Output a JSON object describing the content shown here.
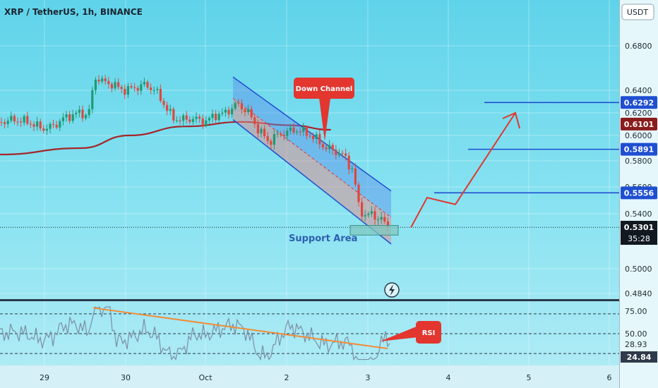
{
  "header": {
    "title": "XRP / TetherUS, 1h, BINANCE",
    "currency_label": "USDT"
  },
  "price_axis": {
    "ticks": [
      "0.6800",
      "0.6400",
      "0.6200",
      "0.6000",
      "0.5800",
      "0.5600",
      "0.5400",
      "0.5000",
      "0.4840"
    ]
  },
  "price_badges": [
    {
      "label": "0.6292",
      "color": "#1f4fd1"
    },
    {
      "label": "0.6101",
      "color": "#8a1c1c"
    },
    {
      "label": "0.5891",
      "color": "#1f4fd1"
    },
    {
      "label": "0.5556",
      "color": "#1f4fd1"
    }
  ],
  "current_price": {
    "label": "0.5301",
    "countdown": "35:28"
  },
  "time_axis": {
    "ticks": [
      "29",
      "30",
      "Oct",
      "2",
      "3",
      "4",
      "5",
      "6"
    ]
  },
  "rsi_axis": {
    "ticks": [
      "75.00",
      "50.00",
      "28.93",
      "24.84"
    ]
  },
  "annotations": {
    "down_channel": "Down Channel",
    "support_area": "Support Area",
    "rsi": "RSI"
  },
  "colors": {
    "channel_line": "#1f4fd1",
    "moving_average": "#a3262a",
    "forecast_arrow": "#e2362f",
    "bull_candle": "#1e9b73",
    "bear_candle": "#e0473f",
    "rsi_line": "#7b8fa3",
    "rsi_trendline": "#f08c3a"
  },
  "icons": {
    "lightning": "lightning-bolt-icon"
  },
  "chart_data": {
    "type": "candlestick",
    "title": "XRP / TetherUS, 1h, BINANCE",
    "x_ticks": [
      "29",
      "30",
      "Oct",
      "2",
      "3",
      "4",
      "5",
      "6"
    ],
    "ylim": [
      0.478,
      0.7
    ],
    "levels": [
      0.6292,
      0.6101,
      0.5891,
      0.5556,
      0.5301
    ],
    "moving_average": [
      {
        "x": 0,
        "y": 0.585
      },
      {
        "x": 1,
        "y": 0.59
      },
      {
        "x": 1.6,
        "y": 0.6
      },
      {
        "x": 2.3,
        "y": 0.608
      },
      {
        "x": 3,
        "y": 0.612
      },
      {
        "x": 3.6,
        "y": 0.609
      },
      {
        "x": 4.1,
        "y": 0.605
      }
    ],
    "down_channel": {
      "upper": [
        {
          "x": 2.35,
          "y": 0.652
        },
        {
          "x": 4.1,
          "y": 0.557
        }
      ],
      "lower": [
        {
          "x": 2.35,
          "y": 0.614
        },
        {
          "x": 4.1,
          "y": 0.518
        }
      ]
    },
    "support_area": [
      0.5245,
      0.5315
    ],
    "forecast_path": [
      {
        "x": 4.15,
        "y": 0.53
      },
      {
        "x": 4.45,
        "y": 0.552
      },
      {
        "x": 4.75,
        "y": 0.547
      },
      {
        "x": 5.35,
        "y": 0.62
      }
    ],
    "rsi": {
      "ylim": [
        18,
        82
      ],
      "levels": [
        70,
        50,
        30
      ],
      "trendline": [
        {
          "x": 1.16,
          "y": 76
        },
        {
          "x": 4.05,
          "y": 35
        }
      ]
    }
  }
}
